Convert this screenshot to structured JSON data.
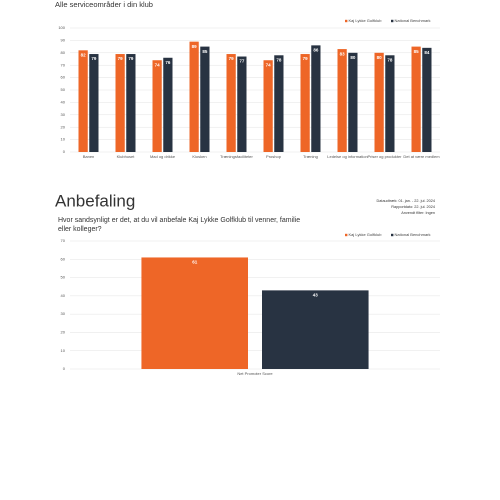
{
  "chart_data": [
    {
      "type": "bar",
      "title": "Alle serviceområder i din klub",
      "categories": [
        "Banen",
        "Klubhuset",
        "Mad og drikke",
        "Kiosken",
        "Træningsfaciliteter",
        "Proshop",
        "Træning",
        "Ledelse og information",
        "Priser og produkter",
        "Det at være medlem"
      ],
      "series": [
        {
          "name": "Kaj Lykke Golfklub",
          "color": "#ee6627",
          "values": [
            82,
            79,
            74,
            89,
            79,
            74,
            79,
            83,
            80,
            85
          ]
        },
        {
          "name": "National Benchmark",
          "color": "#283342",
          "values": [
            79,
            79,
            76,
            85,
            77,
            78,
            86,
            80,
            78,
            84
          ]
        }
      ],
      "ylim": [
        0,
        100
      ],
      "yticks": [
        0,
        10,
        20,
        30,
        40,
        50,
        60,
        70,
        80,
        90,
        100
      ],
      "grid": true,
      "legend": "top-right"
    },
    {
      "type": "bar",
      "title": "Anbefaling",
      "subtitle": "Hvor sandsynligt er det, at du vil anbefale Kaj Lykke Golfklub til venner, familie eller kolleger?",
      "annotations": [
        "Dataudtræk: 01. jan. - 22. jul. 2024",
        "Rapportdato: 22. jul. 2024",
        "Anvendt filter: Ingen"
      ],
      "categories": [
        "Net Promoter Score"
      ],
      "series": [
        {
          "name": "Kaj Lykke Golfklub",
          "color": "#ee6627",
          "values": [
            61
          ]
        },
        {
          "name": "National Benchmark",
          "color": "#283342",
          "values": [
            43
          ]
        }
      ],
      "ylim": [
        0,
        70
      ],
      "yticks": [
        0,
        10,
        20,
        30,
        40,
        50,
        60,
        70
      ],
      "grid": true,
      "legend": "top-right"
    }
  ]
}
